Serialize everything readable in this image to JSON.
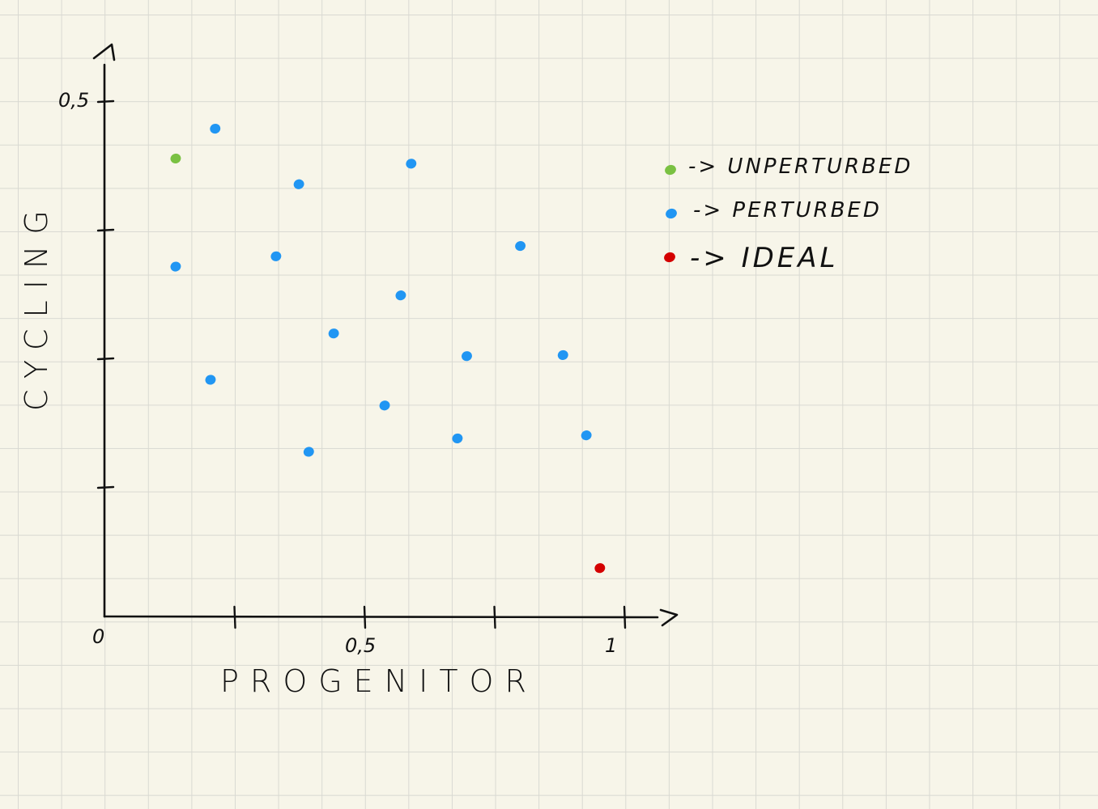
{
  "chart_data": {
    "type": "scatter",
    "xlabel": "PROGENITOR",
    "ylabel": "CYCLING",
    "xlim": [
      0,
      1.1
    ],
    "ylim": [
      0,
      0.5
    ],
    "x_ticks": [
      {
        "value": 0,
        "label": "0"
      },
      {
        "value": 0.25,
        "label": ""
      },
      {
        "value": 0.5,
        "label": "0,5"
      },
      {
        "value": 0.75,
        "label": ""
      },
      {
        "value": 1,
        "label": "1"
      }
    ],
    "y_ticks": [
      {
        "value": 0.125,
        "label": ""
      },
      {
        "value": 0.25,
        "label": ""
      },
      {
        "value": 0.375,
        "label": ""
      },
      {
        "value": 0.5,
        "label": "0,5"
      }
    ],
    "grid": true,
    "legend_position": "top-right",
    "series": [
      {
        "name": "UNPERTURBED",
        "legend_label": "-> UNPERTURBED",
        "color": "#7ac142",
        "points": [
          {
            "x": 0.137,
            "y": 0.445
          }
        ]
      },
      {
        "name": "PERTURBED",
        "legend_label": "-> PERTURBED",
        "color": "#2196f3",
        "points": [
          {
            "x": 0.213,
            "y": 0.474
          },
          {
            "x": 0.374,
            "y": 0.42
          },
          {
            "x": 0.59,
            "y": 0.44
          },
          {
            "x": 0.137,
            "y": 0.34
          },
          {
            "x": 0.33,
            "y": 0.35
          },
          {
            "x": 0.8,
            "y": 0.36
          },
          {
            "x": 0.57,
            "y": 0.312
          },
          {
            "x": 0.441,
            "y": 0.275
          },
          {
            "x": 0.697,
            "y": 0.253
          },
          {
            "x": 0.882,
            "y": 0.254
          },
          {
            "x": 0.204,
            "y": 0.23
          },
          {
            "x": 0.539,
            "y": 0.205
          },
          {
            "x": 0.679,
            "y": 0.173
          },
          {
            "x": 0.927,
            "y": 0.176
          },
          {
            "x": 0.393,
            "y": 0.16
          }
        ]
      },
      {
        "name": "IDEAL",
        "legend_label": "-> IDEAL",
        "color": "#d40000",
        "points": [
          {
            "x": 0.953,
            "y": 0.047
          }
        ]
      }
    ]
  }
}
